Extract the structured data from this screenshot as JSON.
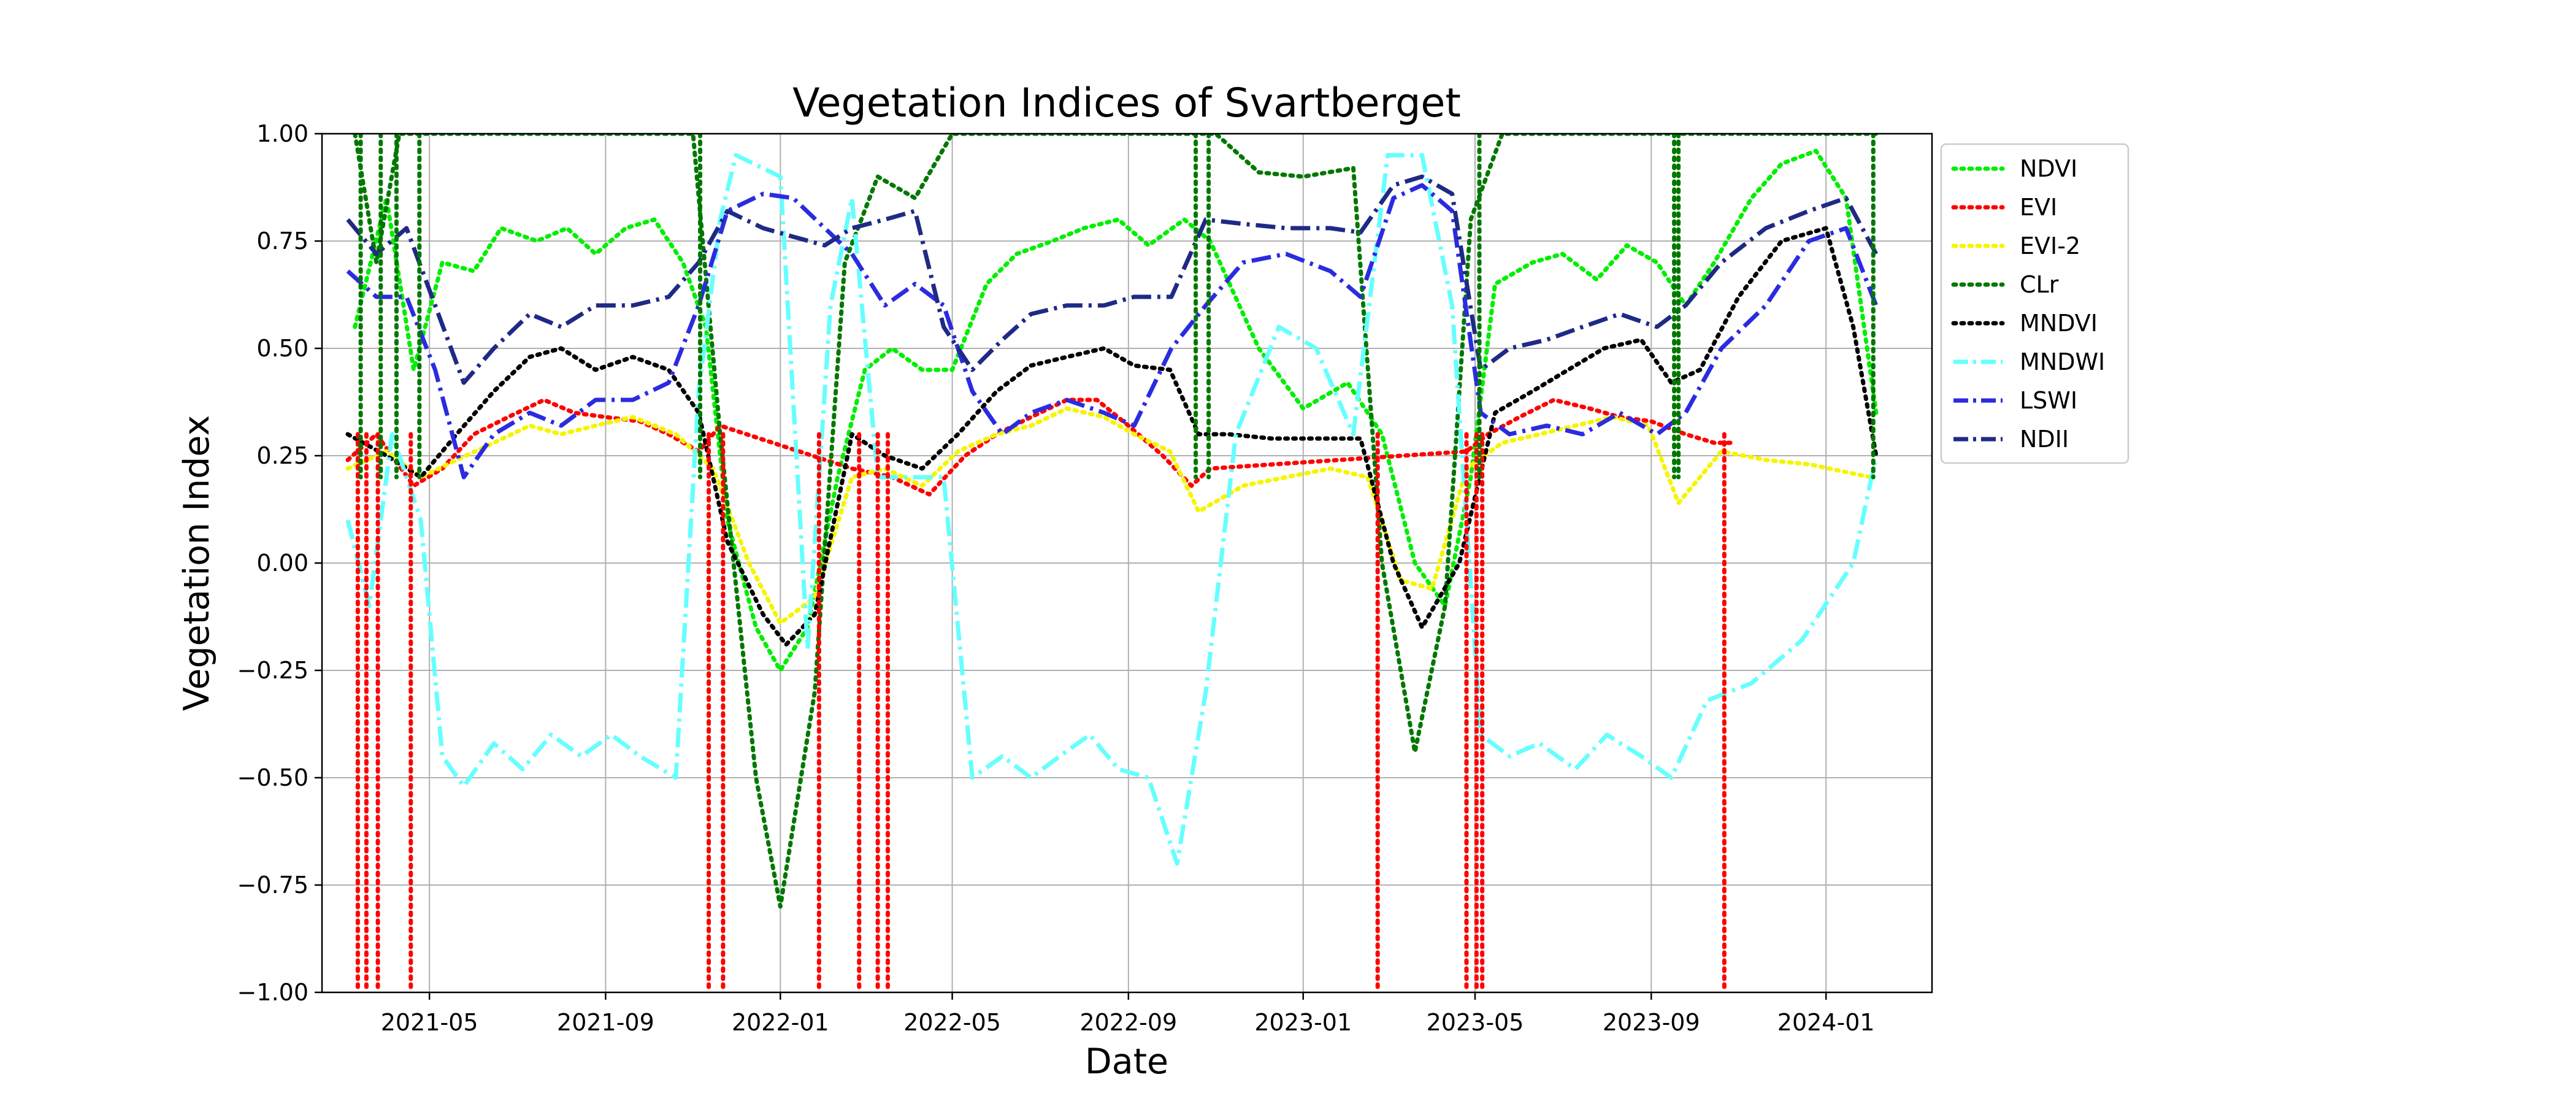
{
  "chart_data": {
    "type": "line",
    "title": "Vegetation Indices of Svartberget",
    "xlabel": "Date",
    "ylabel": "Vegetation Index",
    "xlim": [
      "2021-02-15",
      "2024-03-15"
    ],
    "ylim": [
      -1.0,
      1.0
    ],
    "grid": true,
    "legend_position": "outside-right",
    "x_ticks": [
      "2021-05",
      "2021-09",
      "2022-01",
      "2022-05",
      "2022-09",
      "2023-01",
      "2023-05",
      "2023-09",
      "2024-01"
    ],
    "y_ticks": [
      "−1.00",
      "−0.75",
      "−0.50",
      "−0.25",
      "0.00",
      "0.25",
      "0.50",
      "0.75",
      "1.00"
    ],
    "series": [
      {
        "name": "NDVI",
        "color": "#00ee00",
        "style": "dotted",
        "x": [
          "2021-03-10",
          "2021-04-01",
          "2021-04-20",
          "2021-05-10",
          "2021-06-01",
          "2021-06-20",
          "2021-07-15",
          "2021-08-05",
          "2021-08-25",
          "2021-09-15",
          "2021-10-05",
          "2021-10-25",
          "2021-11-10",
          "2021-11-25",
          "2021-12-15",
          "2022-01-01",
          "2022-01-20",
          "2022-02-10",
          "2022-03-01",
          "2022-03-20",
          "2022-04-10",
          "2022-05-01",
          "2022-05-25",
          "2022-06-15",
          "2022-07-10",
          "2022-08-01",
          "2022-08-25",
          "2022-09-15",
          "2022-10-10",
          "2022-10-28",
          "2022-12-01",
          "2023-01-01",
          "2023-02-01",
          "2023-02-25",
          "2023-03-20",
          "2023-04-10",
          "2023-04-28",
          "2023-05-15",
          "2023-06-10",
          "2023-07-01",
          "2023-07-25",
          "2023-08-15",
          "2023-09-05",
          "2023-09-25",
          "2023-10-15",
          "2023-11-10",
          "2023-12-01",
          "2023-12-25",
          "2024-01-15",
          "2024-02-05"
        ],
        "y": [
          0.55,
          0.85,
          0.45,
          0.7,
          0.68,
          0.78,
          0.75,
          0.78,
          0.72,
          0.78,
          0.8,
          0.7,
          0.55,
          0.1,
          -0.15,
          -0.25,
          -0.15,
          0.2,
          0.45,
          0.5,
          0.45,
          0.45,
          0.65,
          0.72,
          0.75,
          0.78,
          0.8,
          0.74,
          0.8,
          0.75,
          0.5,
          0.36,
          0.42,
          0.3,
          0.0,
          -0.1,
          0.2,
          0.65,
          0.7,
          0.72,
          0.66,
          0.74,
          0.7,
          0.6,
          0.7,
          0.85,
          0.93,
          0.96,
          0.85,
          0.35
        ]
      },
      {
        "name": "EVI",
        "color": "#ff0000",
        "style": "dotted",
        "x": [
          "2021-03-05",
          "2021-03-25",
          "2021-04-20",
          "2021-05-10",
          "2021-06-01",
          "2021-06-25",
          "2021-07-20",
          "2021-08-10",
          "2021-09-01",
          "2021-09-25",
          "2021-10-15",
          "2021-11-05",
          "2021-11-20",
          "2022-02-20",
          "2022-03-20",
          "2022-04-15",
          "2022-05-10",
          "2022-06-01",
          "2022-06-25",
          "2022-07-20",
          "2022-08-10",
          "2022-09-01",
          "2022-09-25",
          "2022-10-15",
          "2022-10-28",
          "2023-04-25",
          "2023-05-10",
          "2023-06-01",
          "2023-06-25",
          "2023-07-20",
          "2023-08-10",
          "2023-09-01",
          "2023-09-25",
          "2023-10-15",
          "2023-10-28"
        ],
        "y": [
          0.24,
          0.3,
          0.18,
          0.22,
          0.3,
          0.34,
          0.38,
          0.35,
          0.34,
          0.33,
          0.3,
          0.26,
          0.32,
          0.22,
          0.2,
          0.16,
          0.25,
          0.3,
          0.34,
          0.38,
          0.38,
          0.32,
          0.25,
          0.18,
          0.22,
          0.26,
          0.3,
          0.34,
          0.38,
          0.36,
          0.34,
          0.33,
          0.3,
          0.28,
          0.28
        ]
      },
      {
        "name": "EVI-2",
        "color": "#f5f500",
        "style": "dotted",
        "x": [
          "2021-03-05",
          "2021-04-01",
          "2021-04-25",
          "2021-05-20",
          "2021-06-15",
          "2021-07-10",
          "2021-08-01",
          "2021-08-25",
          "2021-09-20",
          "2021-10-20",
          "2021-11-15",
          "2021-12-10",
          "2022-01-01",
          "2022-01-25",
          "2022-02-20",
          "2022-03-15",
          "2022-04-10",
          "2022-05-05",
          "2022-06-01",
          "2022-06-25",
          "2022-07-20",
          "2022-08-15",
          "2022-09-05",
          "2022-09-30",
          "2022-10-20",
          "2022-11-20",
          "2022-12-20",
          "2023-01-20",
          "2023-02-15",
          "2023-03-10",
          "2023-04-01",
          "2023-04-25",
          "2023-05-20",
          "2023-06-15",
          "2023-07-10",
          "2023-08-05",
          "2023-08-30",
          "2023-09-20",
          "2023-10-20",
          "2023-11-20",
          "2023-12-20",
          "2024-02-01"
        ],
        "y": [
          0.22,
          0.26,
          0.2,
          0.24,
          0.28,
          0.32,
          0.3,
          0.32,
          0.34,
          0.3,
          0.22,
          0.0,
          -0.14,
          -0.08,
          0.2,
          0.22,
          0.18,
          0.26,
          0.3,
          0.32,
          0.36,
          0.34,
          0.3,
          0.26,
          0.12,
          0.18,
          0.2,
          0.22,
          0.2,
          -0.04,
          -0.06,
          0.22,
          0.28,
          0.3,
          0.32,
          0.34,
          0.32,
          0.14,
          0.26,
          0.24,
          0.23,
          0.2
        ]
      },
      {
        "name": "CLr",
        "color": "#007800",
        "style": "dotted",
        "x": [
          "2021-03-10",
          "2021-03-25",
          "2021-04-10",
          "2021-05-01",
          "2021-06-01",
          "2021-07-01",
          "2021-08-01",
          "2021-09-01",
          "2021-10-01",
          "2021-11-01",
          "2021-11-20",
          "2021-12-15",
          "2022-01-01",
          "2022-01-25",
          "2022-02-15",
          "2022-03-10",
          "2022-04-05",
          "2022-05-01",
          "2022-06-01",
          "2022-07-01",
          "2022-08-01",
          "2022-09-01",
          "2022-10-01",
          "2022-11-01",
          "2022-12-01",
          "2023-01-01",
          "2023-02-05",
          "2023-02-25",
          "2023-03-20",
          "2023-04-10",
          "2023-04-28",
          "2023-05-20",
          "2023-06-20",
          "2023-07-20",
          "2023-08-20",
          "2023-09-20",
          "2023-10-20",
          "2023-11-20",
          "2023-12-20",
          "2024-01-20",
          "2024-02-05"
        ],
        "y": [
          1.0,
          0.7,
          1.0,
          1.0,
          1.0,
          1.0,
          1.0,
          1.0,
          1.0,
          1.0,
          0.3,
          -0.5,
          -0.8,
          -0.3,
          0.7,
          0.9,
          0.85,
          1.0,
          1.0,
          1.0,
          1.0,
          1.0,
          1.0,
          1.0,
          0.91,
          0.9,
          0.92,
          0.0,
          -0.44,
          -0.1,
          0.8,
          1.0,
          1.0,
          1.0,
          1.0,
          1.0,
          1.0,
          1.0,
          1.0,
          1.0,
          1.0
        ]
      },
      {
        "name": "MNDVI",
        "color": "#000000",
        "style": "dotted",
        "x": [
          "2021-03-05",
          "2021-04-01",
          "2021-04-25",
          "2021-05-20",
          "2021-06-15",
          "2021-07-10",
          "2021-08-01",
          "2021-08-25",
          "2021-09-20",
          "2021-10-15",
          "2021-11-05",
          "2021-11-25",
          "2021-12-20",
          "2022-01-05",
          "2022-01-25",
          "2022-02-20",
          "2022-03-15",
          "2022-04-10",
          "2022-05-05",
          "2022-06-01",
          "2022-06-25",
          "2022-07-20",
          "2022-08-15",
          "2022-09-05",
          "2022-09-30",
          "2022-10-20",
          "2022-11-10",
          "2022-12-10",
          "2023-01-15",
          "2023-02-10",
          "2023-03-05",
          "2023-03-25",
          "2023-04-20",
          "2023-05-15",
          "2023-06-10",
          "2023-07-05",
          "2023-07-30",
          "2023-08-25",
          "2023-09-15",
          "2023-10-05",
          "2023-11-01",
          "2023-12-01",
          "2024-01-01",
          "2024-01-20",
          "2024-02-05"
        ],
        "y": [
          0.3,
          0.25,
          0.2,
          0.3,
          0.4,
          0.48,
          0.5,
          0.45,
          0.48,
          0.45,
          0.35,
          0.05,
          -0.12,
          -0.19,
          -0.12,
          0.3,
          0.25,
          0.22,
          0.3,
          0.4,
          0.46,
          0.48,
          0.5,
          0.46,
          0.45,
          0.3,
          0.3,
          0.29,
          0.29,
          0.29,
          0.0,
          -0.15,
          0.0,
          0.35,
          0.4,
          0.45,
          0.5,
          0.52,
          0.42,
          0.45,
          0.62,
          0.75,
          0.78,
          0.55,
          0.25
        ]
      },
      {
        "name": "MNDWI",
        "color": "#66ffff",
        "style": "dashdot",
        "x": [
          "2021-03-05",
          "2021-03-20",
          "2021-04-05",
          "2021-04-25",
          "2021-05-10",
          "2021-05-25",
          "2021-06-15",
          "2021-07-05",
          "2021-07-25",
          "2021-08-15",
          "2021-09-05",
          "2021-09-25",
          "2021-10-20",
          "2021-11-05",
          "2021-11-20",
          "2021-12-01",
          "2022-01-01",
          "2022-01-20",
          "2022-02-05",
          "2022-02-20",
          "2022-03-10",
          "2022-04-01",
          "2022-04-25",
          "2022-05-15",
          "2022-06-05",
          "2022-06-25",
          "2022-07-15",
          "2022-08-05",
          "2022-08-25",
          "2022-09-15",
          "2022-10-05",
          "2022-10-25",
          "2022-11-15",
          "2022-12-15",
          "2023-01-10",
          "2023-02-05",
          "2023-03-01",
          "2023-03-25",
          "2023-04-15",
          "2023-05-05",
          "2023-05-25",
          "2023-06-15",
          "2023-07-10",
          "2023-08-01",
          "2023-08-25",
          "2023-09-15",
          "2023-10-10",
          "2023-11-10",
          "2023-12-15",
          "2024-01-20",
          "2024-02-05"
        ],
        "y": [
          0.1,
          -0.1,
          0.3,
          0.1,
          -0.45,
          -0.52,
          -0.42,
          -0.48,
          -0.4,
          -0.45,
          -0.4,
          -0.45,
          -0.5,
          0.4,
          0.8,
          0.95,
          0.9,
          -0.2,
          0.6,
          0.85,
          0.2,
          0.2,
          0.2,
          -0.5,
          -0.45,
          -0.5,
          -0.45,
          -0.4,
          -0.48,
          -0.5,
          -0.7,
          -0.3,
          0.3,
          0.55,
          0.5,
          0.3,
          0.95,
          0.95,
          0.6,
          -0.4,
          -0.45,
          -0.42,
          -0.48,
          -0.4,
          -0.45,
          -0.5,
          -0.32,
          -0.28,
          -0.18,
          0.0,
          0.25
        ]
      },
      {
        "name": "LSWI",
        "color": "#2b2be0",
        "style": "dashdot",
        "x": [
          "2021-03-05",
          "2021-03-25",
          "2021-04-15",
          "2021-05-05",
          "2021-05-25",
          "2021-06-15",
          "2021-07-10",
          "2021-08-01",
          "2021-08-25",
          "2021-09-20",
          "2021-10-15",
          "2021-11-05",
          "2021-11-25",
          "2021-12-20",
          "2022-01-10",
          "2022-02-01",
          "2022-02-20",
          "2022-03-15",
          "2022-04-05",
          "2022-04-25",
          "2022-05-15",
          "2022-06-05",
          "2022-06-25",
          "2022-07-20",
          "2022-08-15",
          "2022-09-05",
          "2022-10-01",
          "2022-10-25",
          "2022-11-20",
          "2022-12-20",
          "2023-01-20",
          "2023-02-10",
          "2023-03-05",
          "2023-03-25",
          "2023-04-15",
          "2023-05-05",
          "2023-05-25",
          "2023-06-20",
          "2023-07-15",
          "2023-08-10",
          "2023-09-05",
          "2023-09-25",
          "2023-10-20",
          "2023-11-20",
          "2023-12-20",
          "2024-01-15",
          "2024-02-05"
        ],
        "y": [
          0.68,
          0.62,
          0.62,
          0.45,
          0.2,
          0.3,
          0.35,
          0.32,
          0.38,
          0.38,
          0.42,
          0.6,
          0.82,
          0.86,
          0.85,
          0.78,
          0.72,
          0.6,
          0.65,
          0.6,
          0.4,
          0.3,
          0.35,
          0.38,
          0.35,
          0.32,
          0.5,
          0.6,
          0.7,
          0.72,
          0.68,
          0.62,
          0.85,
          0.88,
          0.82,
          0.35,
          0.3,
          0.32,
          0.3,
          0.35,
          0.3,
          0.35,
          0.5,
          0.6,
          0.75,
          0.78,
          0.6
        ]
      },
      {
        "name": "NDII",
        "color": "#1f2a85",
        "style": "dashdot",
        "x": [
          "2021-03-05",
          "2021-03-25",
          "2021-04-15",
          "2021-05-05",
          "2021-05-25",
          "2021-06-15",
          "2021-07-10",
          "2021-08-01",
          "2021-08-25",
          "2021-09-20",
          "2021-10-15",
          "2021-11-05",
          "2021-11-25",
          "2021-12-20",
          "2022-01-10",
          "2022-02-01",
          "2022-02-20",
          "2022-03-15",
          "2022-04-05",
          "2022-04-25",
          "2022-05-15",
          "2022-06-05",
          "2022-06-25",
          "2022-07-20",
          "2022-08-15",
          "2022-09-05",
          "2022-10-01",
          "2022-10-25",
          "2022-11-20",
          "2022-12-20",
          "2023-01-20",
          "2023-02-10",
          "2023-03-05",
          "2023-03-25",
          "2023-04-15",
          "2023-05-05",
          "2023-05-25",
          "2023-06-20",
          "2023-07-15",
          "2023-08-10",
          "2023-09-05",
          "2023-09-25",
          "2023-10-20",
          "2023-11-20",
          "2023-12-20",
          "2024-01-15",
          "2024-02-05"
        ],
        "y": [
          0.8,
          0.72,
          0.78,
          0.6,
          0.42,
          0.5,
          0.58,
          0.55,
          0.6,
          0.6,
          0.62,
          0.7,
          0.82,
          0.78,
          0.76,
          0.74,
          0.78,
          0.8,
          0.82,
          0.55,
          0.45,
          0.52,
          0.58,
          0.6,
          0.6,
          0.62,
          0.62,
          0.8,
          0.79,
          0.78,
          0.78,
          0.77,
          0.88,
          0.9,
          0.86,
          0.45,
          0.5,
          0.52,
          0.55,
          0.58,
          0.55,
          0.6,
          0.7,
          0.78,
          0.82,
          0.85,
          0.72
        ]
      }
    ],
    "vertical_spikes": {
      "note": "EVI drops to -1.00 at these dates",
      "EVI": [
        "2021-03-12",
        "2021-03-18",
        "2021-03-26",
        "2021-04-18",
        "2021-11-12",
        "2021-11-22",
        "2022-01-28",
        "2022-02-25",
        "2022-03-10",
        "2022-03-17",
        "2023-02-22",
        "2023-04-25",
        "2023-05-02",
        "2023-05-06",
        "2023-10-22"
      ],
      "CLr_spikes": [
        "2021-03-14",
        "2021-03-28",
        "2021-04-08",
        "2021-04-24",
        "2021-11-06",
        "2022-10-18",
        "2022-10-27",
        "2023-05-04",
        "2023-09-17",
        "2023-09-20",
        "2024-02-03"
      ]
    }
  }
}
